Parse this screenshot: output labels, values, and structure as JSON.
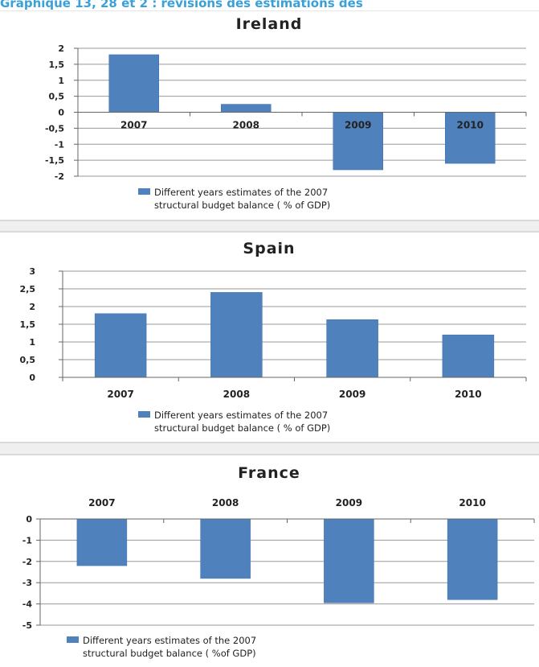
{
  "header": {
    "title": "Graphique 13, 28 et 2 : révisions des estimations des"
  },
  "colors": {
    "bar": "#4f81bd",
    "bar_edge": "#3f6fa8",
    "grid": "#999999",
    "axis": "#666666",
    "text": "#222222"
  },
  "chart_data": [
    {
      "type": "bar",
      "title": "Ireland",
      "categories": [
        "2007",
        "2008",
        "2009",
        "2010"
      ],
      "values": [
        1.8,
        0.25,
        -1.8,
        -1.6
      ],
      "yticks": [
        "2",
        "1,5",
        "1",
        "0,5",
        "0",
        "-0,5",
        "-1",
        "-1,5",
        "-2"
      ],
      "ylim": [
        -2,
        2
      ],
      "category_labels_position": "at-zero-line",
      "legend": "Different years estimates of the 2007 structural budget balance ( % of GDP)",
      "legend_lines": [
        "Different years estimates of the 2007",
        "structural budget balance ( % of GDP)"
      ],
      "legend_position": "bottom",
      "grid": true
    },
    {
      "type": "bar",
      "title": "Spain",
      "categories": [
        "2007",
        "2008",
        "2009",
        "2010"
      ],
      "values": [
        1.8,
        2.4,
        1.63,
        1.2
      ],
      "yticks": [
        "3",
        "2,5",
        "2",
        "1,5",
        "1",
        "0,5",
        "0"
      ],
      "ylim": [
        0,
        3
      ],
      "category_labels_position": "bottom",
      "legend": "Different years estimates of the 2007 structural budget balance ( % of GDP)",
      "legend_lines": [
        "Different years estimates of the 2007",
        "structural budget balance ( % of GDP)"
      ],
      "legend_position": "bottom",
      "grid": true
    },
    {
      "type": "bar",
      "title": "France",
      "categories": [
        "2007",
        "2008",
        "2009",
        "2010"
      ],
      "values": [
        -2.2,
        -2.8,
        -3.95,
        -3.8
      ],
      "yticks": [
        "0",
        "-1",
        "-2",
        "-3",
        "-4",
        "-5"
      ],
      "ylim": [
        -5,
        0
      ],
      "category_labels_position": "top",
      "legend": "Different years estimates of the 2007 structural budget balance ( %of GDP)",
      "legend_lines": [
        "Different years estimates of the 2007",
        "structural budget balance ( %of GDP)"
      ],
      "legend_position": "bottom",
      "grid": true
    }
  ]
}
